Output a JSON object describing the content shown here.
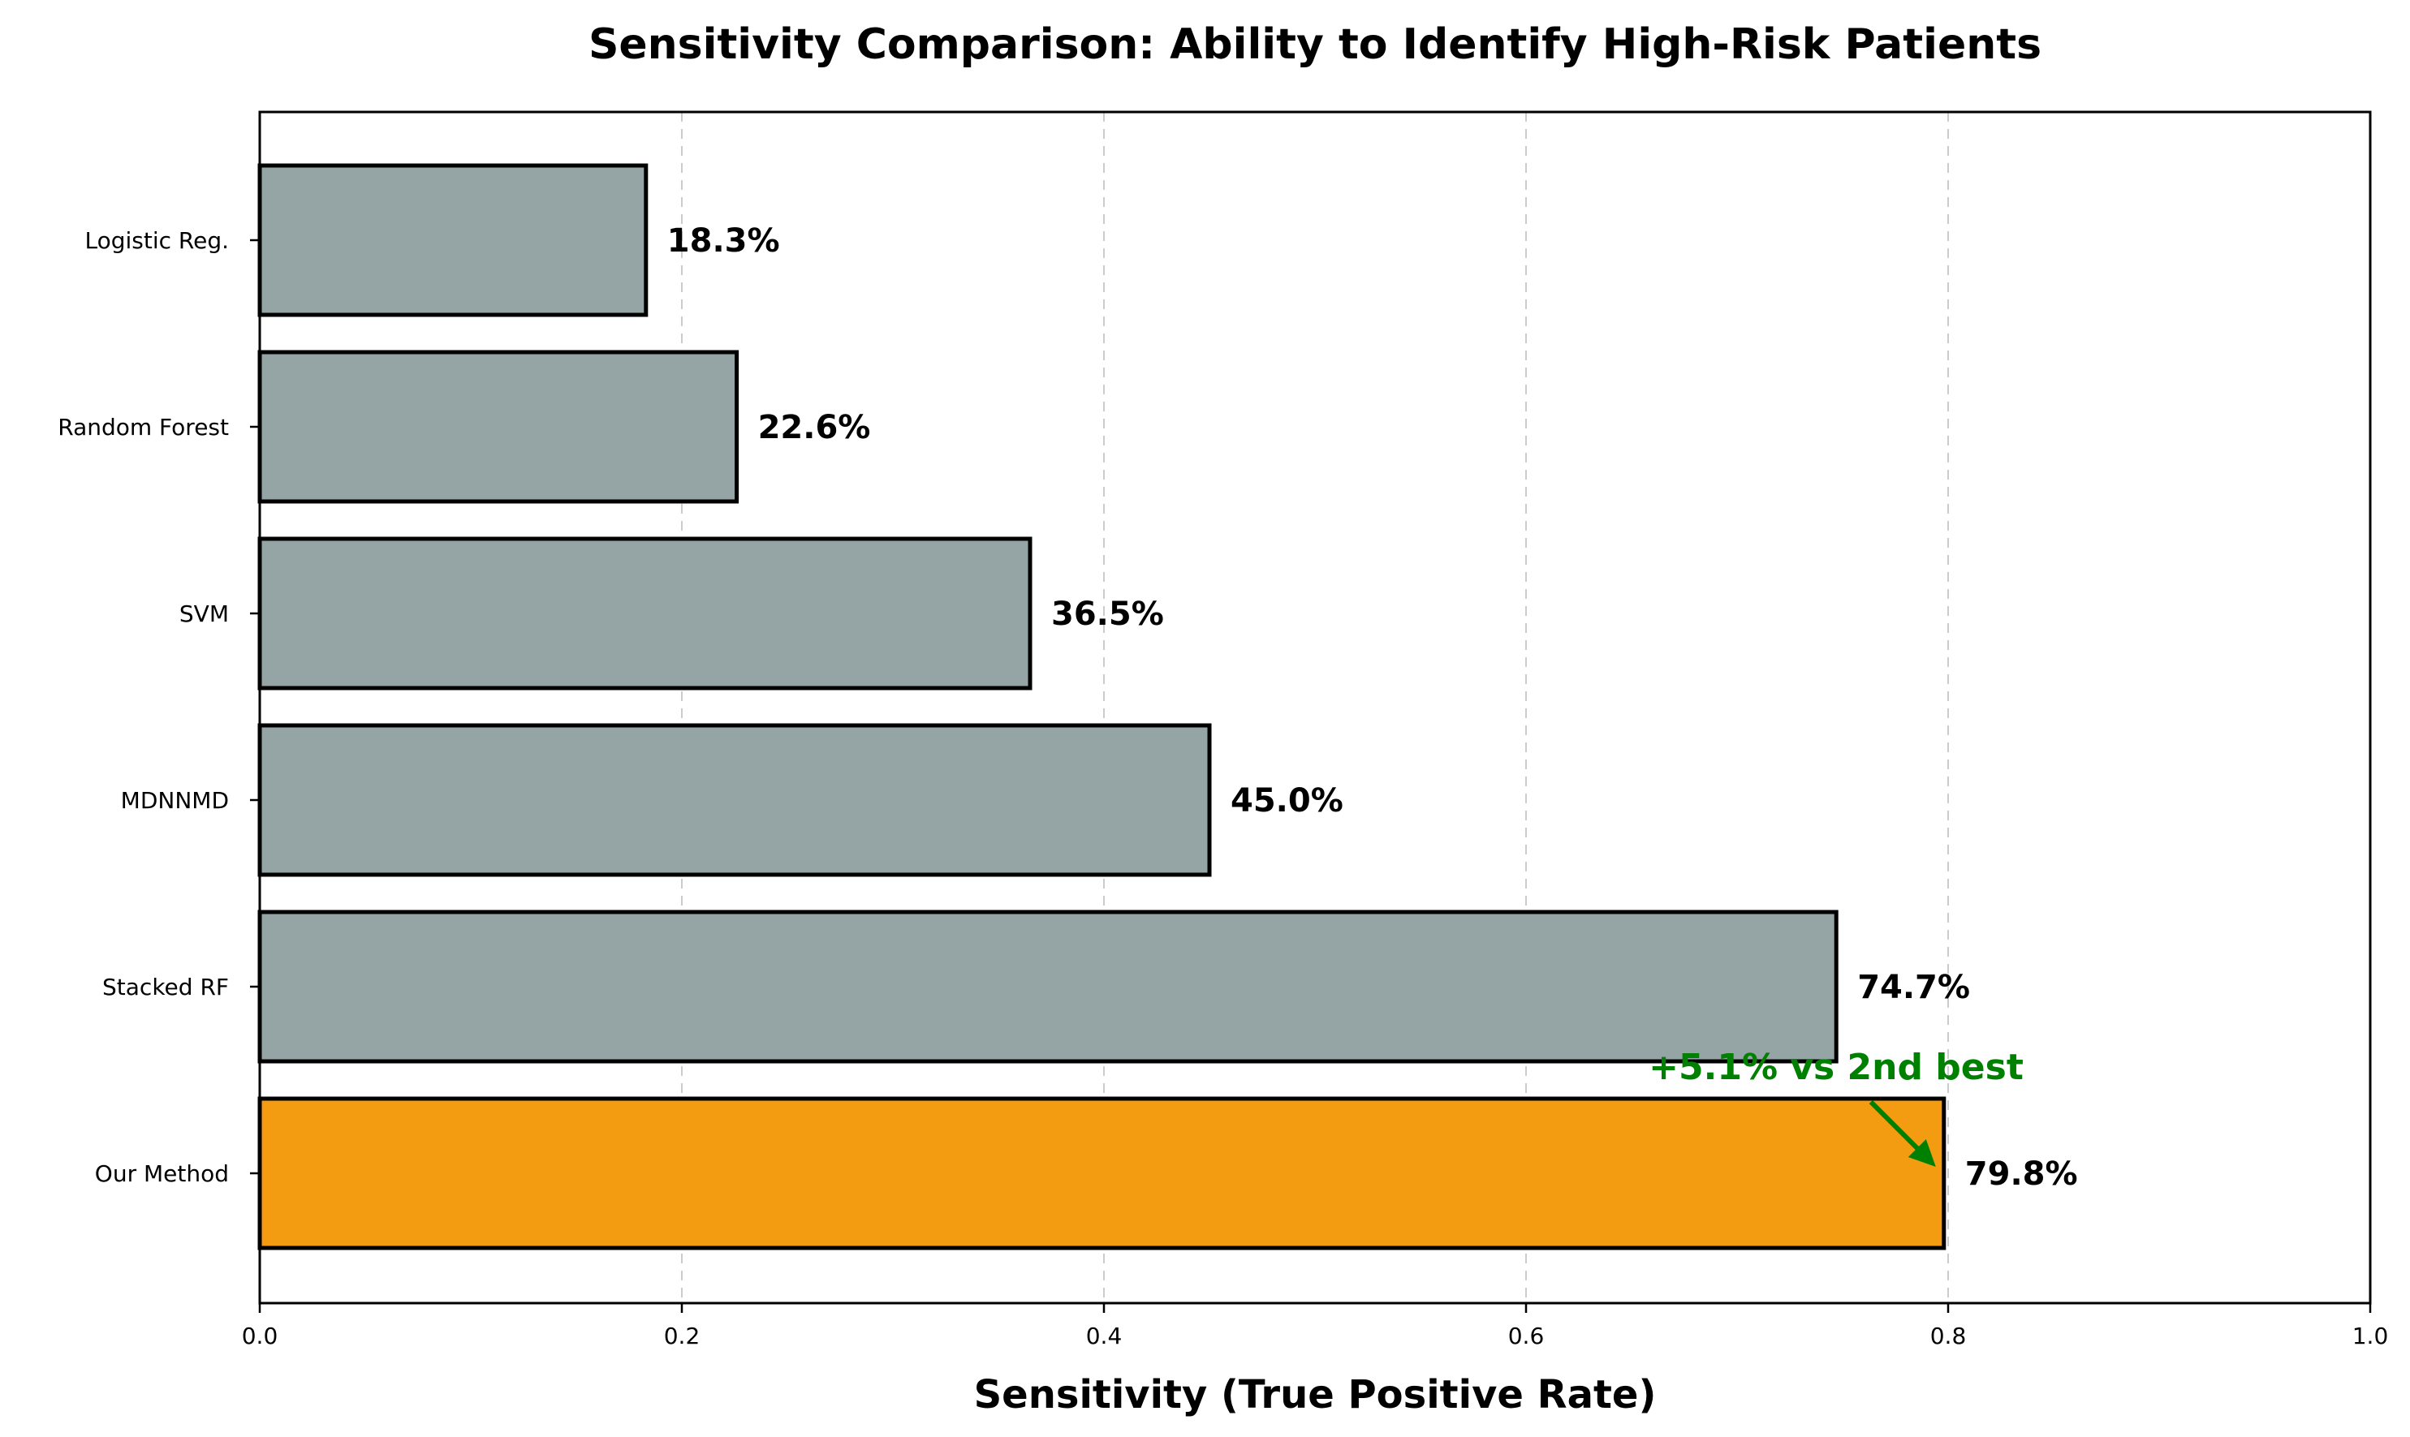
{
  "chart_data": {
    "type": "bar",
    "orientation": "horizontal",
    "title": "Sensitivity Comparison: Ability to Identify High-Risk Patients",
    "xlabel": "Sensitivity (True Positive Rate)",
    "ylabel": "",
    "xlim": [
      0,
      1.0
    ],
    "xticks": [
      "0.0",
      "0.2",
      "0.4",
      "0.6",
      "0.8",
      "1.0"
    ],
    "grid": "vertical-dashed",
    "categories": [
      "Logistic Reg.",
      "Random Forest",
      "SVM",
      "MDNNMD",
      "Stacked RF",
      "Our Method"
    ],
    "values": [
      0.183,
      0.226,
      0.365,
      0.45,
      0.747,
      0.798
    ],
    "value_labels": [
      "18.3%",
      "22.6%",
      "36.5%",
      "45.0%",
      "74.7%",
      "79.8%"
    ],
    "colors": [
      "#95a5a6",
      "#95a5a6",
      "#95a5a6",
      "#95a5a6",
      "#95a5a6",
      "#f39c12"
    ],
    "annotation": {
      "text": "+5.1% vs 2nd best",
      "color": "#008000",
      "target_value": 0.798,
      "target_category": "Our Method"
    }
  }
}
